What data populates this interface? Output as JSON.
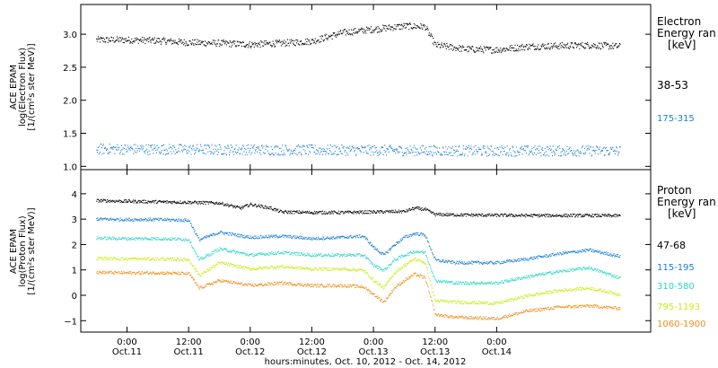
{
  "chart_data": [
    {
      "type": "scatter",
      "ylabel_lines": [
        "ACE EPAM",
        "log(Electron Flux)",
        "[1/(cm²s ster MeV)]"
      ],
      "ylim": [
        0.95,
        3.45
      ],
      "yticks": [
        "1.0",
        "1.5",
        "2.0",
        "2.5",
        "3.0"
      ],
      "ytick_values": [
        1.0,
        1.5,
        2.0,
        2.5,
        3.0
      ],
      "legend_title": [
        "Electron",
        "Energy ran",
        "[keV]"
      ],
      "series": [
        {
          "name": "38-53",
          "color": "#000000",
          "x_hours": [
            0,
            6,
            12,
            18,
            24,
            30,
            36,
            42,
            48,
            54,
            60,
            64,
            66,
            72,
            78,
            84,
            90,
            96,
            102
          ],
          "values": [
            2.92,
            2.92,
            2.91,
            2.88,
            2.87,
            2.85,
            2.87,
            2.9,
            3.03,
            3.08,
            3.13,
            3.12,
            2.84,
            2.78,
            2.77,
            2.82,
            2.83,
            2.84,
            2.82
          ]
        },
        {
          "name": "175-315",
          "color": "#1a7ed8",
          "x_hours": [
            0,
            25,
            50,
            75,
            102
          ],
          "values": [
            1.27,
            1.26,
            1.25,
            1.24,
            1.24
          ]
        }
      ]
    },
    {
      "type": "scatter",
      "ylabel_lines": [
        "ACE EPAM",
        "log(Proton Flux)",
        "[1/(cm²s ster MeV)]"
      ],
      "ylim": [
        -1.45,
        4.95
      ],
      "yticks": [
        "−1",
        "0",
        "1",
        "2",
        "3",
        "4"
      ],
      "ytick_values": [
        -1,
        0,
        1,
        2,
        3,
        4
      ],
      "legend_title": [
        "Proton",
        "Energy ran",
        "[keV]"
      ],
      "series": [
        {
          "name": "47-68",
          "color": "#000000",
          "x_hours": [
            0,
            6,
            12,
            18,
            24,
            28,
            30,
            34,
            36,
            42,
            48,
            54,
            60,
            62,
            64,
            66,
            72,
            78,
            84,
            90,
            96,
            102
          ],
          "values": [
            3.75,
            3.72,
            3.7,
            3.68,
            3.65,
            3.45,
            3.6,
            3.45,
            3.3,
            3.28,
            3.28,
            3.3,
            3.32,
            3.45,
            3.4,
            3.2,
            3.18,
            3.17,
            3.16,
            3.16,
            3.16,
            3.15
          ]
        },
        {
          "name": "115-195",
          "color": "#1a7ed8",
          "x_hours": [
            0,
            6,
            12,
            18,
            20,
            24,
            30,
            36,
            42,
            48,
            52,
            54,
            56,
            58,
            60,
            62,
            64,
            66,
            70,
            78,
            84,
            90,
            96,
            102
          ],
          "values": [
            3.02,
            3.0,
            3.0,
            2.97,
            2.2,
            2.5,
            2.3,
            2.35,
            2.25,
            2.3,
            2.35,
            1.9,
            1.6,
            2.0,
            2.3,
            2.45,
            2.4,
            1.4,
            1.3,
            1.3,
            1.45,
            1.65,
            1.8,
            1.55
          ]
        },
        {
          "name": "310-580",
          "color": "#29d9c6",
          "x_hours": [
            0,
            6,
            12,
            18,
            20,
            24,
            30,
            36,
            42,
            48,
            52,
            54,
            56,
            58,
            60,
            62,
            64,
            66,
            70,
            78,
            84,
            90,
            96,
            102
          ],
          "values": [
            2.27,
            2.25,
            2.25,
            2.22,
            1.4,
            1.85,
            1.6,
            1.7,
            1.6,
            1.6,
            1.6,
            1.2,
            1.0,
            1.4,
            1.6,
            1.75,
            1.7,
            0.6,
            0.5,
            0.5,
            0.75,
            0.95,
            1.1,
            0.7
          ]
        },
        {
          "name": "795-1193",
          "color": "#c8ec1a",
          "x_hours": [
            0,
            6,
            12,
            18,
            20,
            24,
            30,
            36,
            42,
            48,
            52,
            54,
            56,
            58,
            60,
            62,
            64,
            66,
            70,
            78,
            84,
            90,
            96,
            102
          ],
          "values": [
            1.47,
            1.45,
            1.45,
            1.42,
            0.8,
            1.3,
            1.05,
            1.15,
            1.05,
            1.05,
            1.0,
            0.6,
            0.3,
            0.9,
            1.2,
            1.45,
            1.3,
            -0.2,
            -0.25,
            -0.3,
            0.0,
            0.2,
            0.3,
            0.05
          ]
        },
        {
          "name": "1060-1900",
          "color": "#f0901e",
          "x_hours": [
            0,
            6,
            12,
            18,
            20,
            24,
            30,
            36,
            42,
            48,
            52,
            54,
            56,
            58,
            60,
            62,
            64,
            66,
            70,
            78,
            84,
            90,
            96,
            102
          ],
          "values": [
            0.92,
            0.9,
            0.9,
            0.87,
            0.3,
            0.6,
            0.4,
            0.5,
            0.4,
            0.4,
            0.35,
            0.05,
            -0.25,
            0.3,
            0.6,
            0.85,
            0.7,
            -0.75,
            -0.85,
            -0.9,
            -0.6,
            -0.45,
            -0.4,
            -0.5
          ]
        }
      ]
    }
  ],
  "x_axis": {
    "range_hours": [
      -3,
      108
    ],
    "ticks": [
      {
        "hour": 6,
        "top": "0:00",
        "bottom": "Oct.11"
      },
      {
        "hour": 18,
        "top": "12:00",
        "bottom": "Oct.11"
      },
      {
        "hour": 30,
        "top": "0:00",
        "bottom": "Oct.12"
      },
      {
        "hour": 42,
        "top": "12:00",
        "bottom": "Oct.12"
      },
      {
        "hour": 54,
        "top": "0:00",
        "bottom": "Oct.13"
      },
      {
        "hour": 66,
        "top": "12:00",
        "bottom": "Oct.13"
      },
      {
        "hour": 78,
        "top": "0:00",
        "bottom": "Oct.14"
      }
    ],
    "label": "hours:minutes, Oct. 10, 2012 - Oct. 14, 2012"
  }
}
